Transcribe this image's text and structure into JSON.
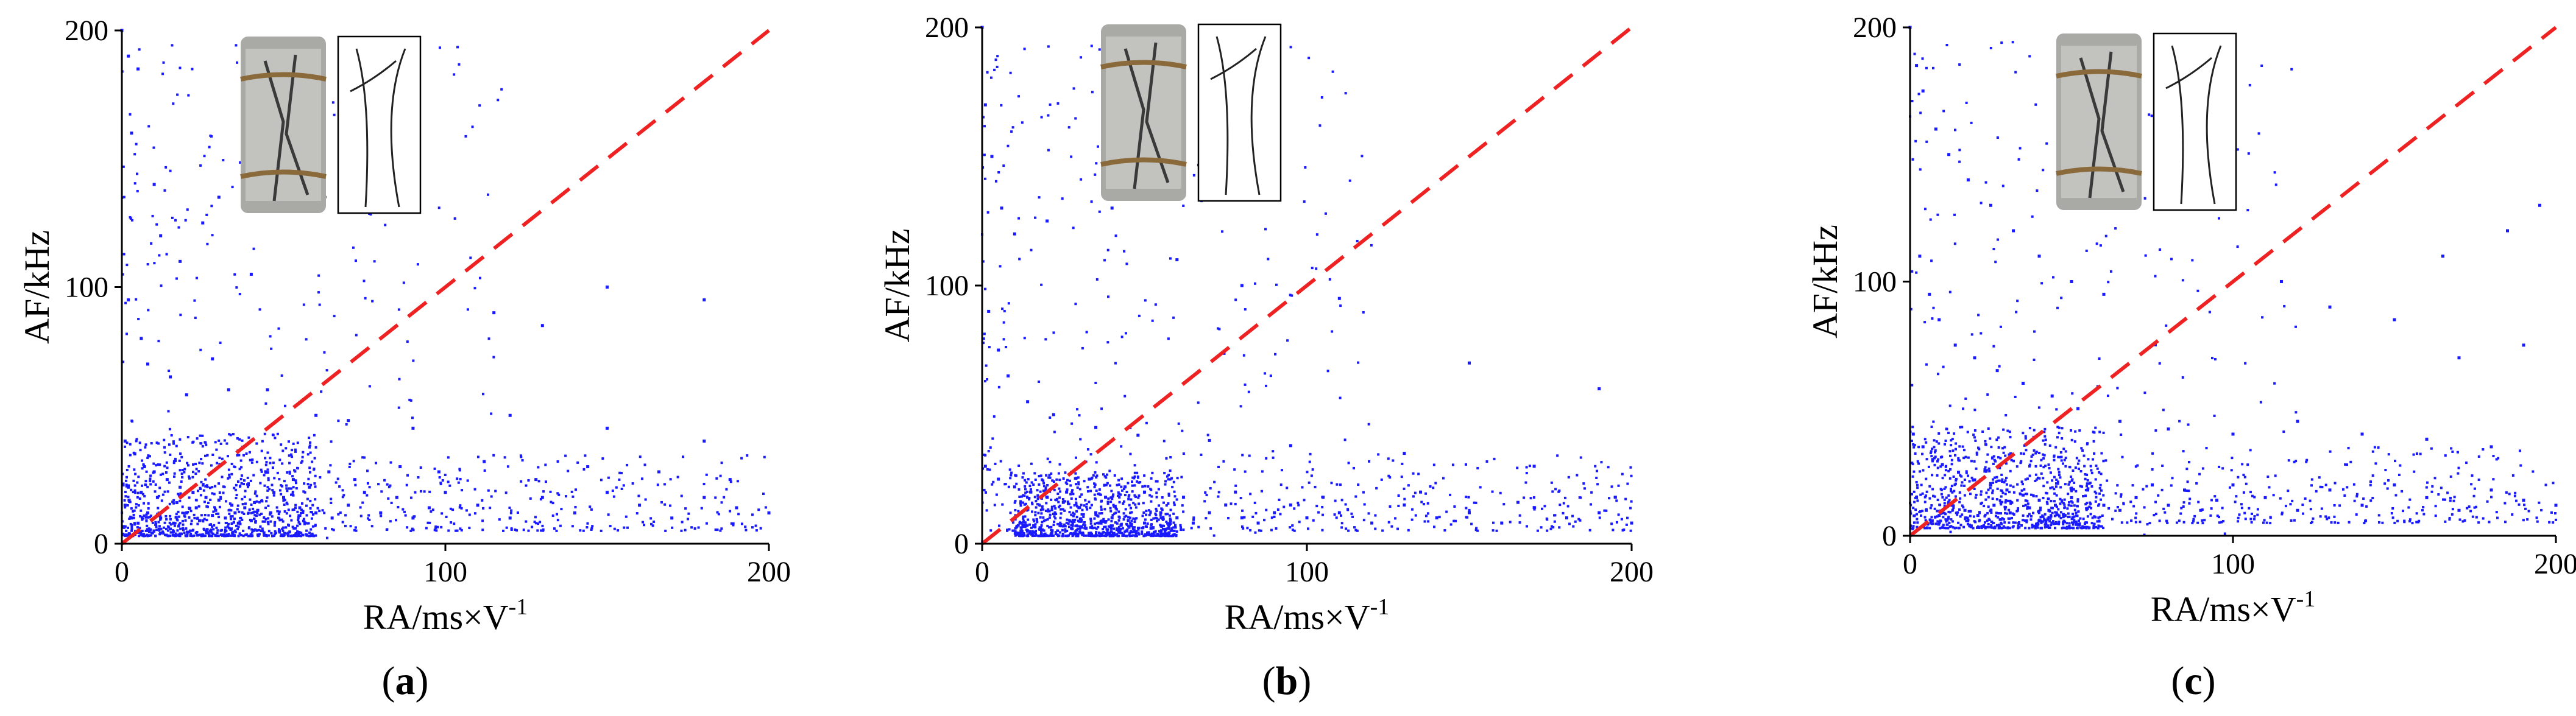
{
  "chart_data": [
    {
      "type": "scatter",
      "panel_label": "a",
      "title": "",
      "xlabel": "RA/ms×V",
      "xlabel_superscript": "-1",
      "ylabel": "AF/kHz",
      "xlim": [
        0,
        200
      ],
      "ylim": [
        0,
        200
      ],
      "xticks": [
        0,
        100,
        200
      ],
      "yticks": [
        0,
        100,
        200
      ],
      "grid": false,
      "legend": "none",
      "series": [
        {
          "marker_color": "#1a1aff",
          "density": "cloud dense at RA 0–60, AF 0–40; sparse band along AF 5–40 to RA 200; scattered points up to AF 200 near RA 0–50",
          "points": [
            [
              0,
              200
            ],
            [
              2,
              190
            ],
            [
              3,
              160
            ],
            [
              5,
              185
            ],
            [
              10,
              140
            ],
            [
              12,
              120
            ],
            [
              18,
              110
            ],
            [
              25,
              125
            ],
            [
              30,
              135
            ],
            [
              40,
              105
            ],
            [
              2,
              95
            ],
            [
              6,
              80
            ],
            [
              8,
              70
            ],
            [
              15,
              65
            ],
            [
              20,
              58
            ],
            [
              28,
              72
            ],
            [
              33,
              60
            ],
            [
              45,
              60
            ],
            [
              55,
              55
            ],
            [
              60,
              50
            ],
            [
              70,
              48
            ],
            [
              90,
              45
            ],
            [
              120,
              50
            ],
            [
              150,
              45
            ],
            [
              180,
              40
            ],
            [
              1,
              40
            ],
            [
              4,
              35
            ],
            [
              7,
              30
            ],
            [
              10,
              28
            ],
            [
              14,
              25
            ],
            [
              18,
              22
            ],
            [
              22,
              20
            ],
            [
              26,
              18
            ],
            [
              30,
              17
            ],
            [
              34,
              15
            ],
            [
              38,
              14
            ],
            [
              42,
              13
            ],
            [
              46,
              12
            ],
            [
              50,
              18
            ],
            [
              55,
              14
            ],
            [
              60,
              12
            ],
            [
              65,
              10
            ],
            [
              70,
              15
            ],
            [
              75,
              20
            ],
            [
              80,
              12
            ],
            [
              85,
              18
            ],
            [
              90,
              10
            ],
            [
              95,
              14
            ],
            [
              100,
              20
            ],
            [
              110,
              15
            ],
            [
              120,
              10
            ],
            [
              130,
              18
            ],
            [
              140,
              12
            ],
            [
              150,
              20
            ],
            [
              160,
              15
            ],
            [
              170,
              10
            ],
            [
              180,
              18
            ],
            [
              190,
              14
            ],
            [
              200,
              12
            ],
            [
              1,
              15
            ],
            [
              3,
              10
            ],
            [
              5,
              8
            ],
            [
              8,
              12
            ],
            [
              12,
              10
            ],
            [
              16,
              8
            ],
            [
              20,
              12
            ],
            [
              24,
              9
            ],
            [
              28,
              11
            ],
            [
              32,
              10
            ],
            [
              36,
              8
            ],
            [
              40,
              9
            ],
            [
              2,
              22
            ],
            [
              6,
              20
            ],
            [
              11,
              18
            ],
            [
              17,
              16
            ],
            [
              23,
              14
            ],
            [
              29,
              13
            ],
            [
              35,
              12
            ],
            [
              41,
              16
            ],
            [
              47,
              20
            ],
            [
              53,
              25
            ],
            [
              58,
              22
            ],
            [
              64,
              28
            ],
            [
              72,
              25
            ],
            [
              86,
              30
            ],
            [
              98,
              28
            ],
            [
              112,
              32
            ],
            [
              128,
              25
            ],
            [
              144,
              30
            ],
            [
              166,
              28
            ],
            [
              188,
              25
            ],
            [
              150,
              100
            ],
            [
              180,
              95
            ],
            [
              130,
              85
            ],
            [
              115,
              90
            ]
          ]
        }
      ],
      "reference_line": {
        "x": [
          0,
          200
        ],
        "y": [
          0,
          200
        ],
        "color": "#ee2222",
        "style": "dashed"
      },
      "inset": {
        "type": "photo and crack sketch",
        "description": "cylindrical rock specimen with cracks and its fracture sketch"
      }
    },
    {
      "type": "scatter",
      "panel_label": "b",
      "title": "",
      "xlabel": "RA/ms×V",
      "xlabel_superscript": "-1",
      "ylabel": "AF/kHz",
      "xlim": [
        0,
        200
      ],
      "ylim": [
        0,
        200
      ],
      "xticks": [
        0,
        100,
        200
      ],
      "yticks": [
        0,
        100,
        200
      ],
      "grid": false,
      "legend": "none",
      "series": [
        {
          "marker_color": "#1a1aff",
          "density": "dense cloud at RA 10–60, AF 0–25; sparse band along AF 5–25 to RA 200; scattered points up to AF 200",
          "points": [
            [
              0,
              200
            ],
            [
              1,
              170
            ],
            [
              3,
              150
            ],
            [
              6,
              130
            ],
            [
              10,
              120
            ],
            [
              20,
              125
            ],
            [
              40,
              130
            ],
            [
              60,
              110
            ],
            [
              80,
              100
            ],
            [
              110,
              95
            ],
            [
              150,
              70
            ],
            [
              190,
              60
            ],
            [
              2,
              90
            ],
            [
              5,
              75
            ],
            [
              8,
              65
            ],
            [
              14,
              55
            ],
            [
              22,
              50
            ],
            [
              35,
              45
            ],
            [
              48,
              42
            ],
            [
              70,
              40
            ],
            [
              95,
              38
            ],
            [
              130,
              35
            ],
            [
              170,
              30
            ],
            [
              1,
              30
            ],
            [
              5,
              25
            ],
            [
              10,
              22
            ],
            [
              15,
              20
            ],
            [
              20,
              18
            ],
            [
              25,
              16
            ],
            [
              30,
              14
            ],
            [
              35,
              12
            ],
            [
              40,
              10
            ],
            [
              45,
              9
            ],
            [
              50,
              8
            ],
            [
              55,
              12
            ],
            [
              60,
              10
            ],
            [
              65,
              8
            ],
            [
              70,
              12
            ],
            [
              75,
              15
            ],
            [
              80,
              10
            ],
            [
              85,
              8
            ],
            [
              90,
              12
            ],
            [
              95,
              15
            ],
            [
              100,
              10
            ],
            [
              110,
              12
            ],
            [
              120,
              8
            ],
            [
              130,
              15
            ],
            [
              140,
              10
            ],
            [
              150,
              12
            ],
            [
              160,
              8
            ],
            [
              170,
              14
            ],
            [
              180,
              10
            ],
            [
              190,
              12
            ],
            [
              200,
              8
            ],
            [
              12,
              8
            ],
            [
              18,
              6
            ],
            [
              24,
              7
            ],
            [
              28,
              9
            ],
            [
              32,
              6
            ],
            [
              36,
              8
            ],
            [
              42,
              5
            ],
            [
              46,
              7
            ],
            [
              52,
              6
            ],
            [
              58,
              9
            ],
            [
              26,
              20
            ],
            [
              38,
              18
            ],
            [
              44,
              22
            ],
            [
              33,
              25
            ],
            [
              50,
              20
            ],
            [
              62,
              18
            ],
            [
              78,
              20
            ],
            [
              105,
              18
            ],
            [
              135,
              20
            ],
            [
              165,
              16
            ],
            [
              195,
              18
            ]
          ]
        }
      ],
      "reference_line": {
        "x": [
          0,
          200
        ],
        "y": [
          0,
          200
        ],
        "color": "#ee2222",
        "style": "dashed"
      },
      "inset": {
        "type": "photo and crack sketch",
        "description": "cylindrical rock specimen with cracks and its fracture sketch"
      }
    },
    {
      "type": "scatter",
      "panel_label": "c",
      "title": "",
      "xlabel": "RA/ms×V",
      "xlabel_superscript": "-1",
      "ylabel": "AF/kHz",
      "xlim": [
        0,
        200
      ],
      "ylim": [
        0,
        200
      ],
      "xticks": [
        0,
        100,
        200
      ],
      "yticks": [
        0,
        100,
        200
      ],
      "grid": false,
      "legend": "none",
      "series": [
        {
          "marker_color": "#1a1aff",
          "density": "moderately dense at RA 0–60, AF 0–60; band AF 5–40 to RA 200; points spread up to AF 200 near RA 0–60",
          "points": [
            [
              0,
              200
            ],
            [
              2,
              185
            ],
            [
              4,
              175
            ],
            [
              8,
              160
            ],
            [
              12,
              150
            ],
            [
              18,
              140
            ],
            [
              25,
              130
            ],
            [
              32,
              120
            ],
            [
              40,
              110
            ],
            [
              50,
              100
            ],
            [
              60,
              95
            ],
            [
              3,
              110
            ],
            [
              6,
              95
            ],
            [
              9,
              85
            ],
            [
              14,
              75
            ],
            [
              20,
              70
            ],
            [
              27,
              65
            ],
            [
              35,
              60
            ],
            [
              44,
              55
            ],
            [
              52,
              50
            ],
            [
              65,
              45
            ],
            [
              80,
              42
            ],
            [
              100,
              40
            ],
            [
              120,
              45
            ],
            [
              140,
              40
            ],
            [
              160,
              38
            ],
            [
              180,
              35
            ],
            [
              1,
              40
            ],
            [
              4,
              35
            ],
            [
              7,
              30
            ],
            [
              10,
              28
            ],
            [
              15,
              25
            ],
            [
              20,
              22
            ],
            [
              25,
              20
            ],
            [
              30,
              18
            ],
            [
              35,
              16
            ],
            [
              40,
              14
            ],
            [
              45,
              12
            ],
            [
              50,
              15
            ],
            [
              55,
              18
            ],
            [
              60,
              12
            ],
            [
              65,
              10
            ],
            [
              70,
              15
            ],
            [
              75,
              20
            ],
            [
              80,
              12
            ],
            [
              85,
              18
            ],
            [
              90,
              10
            ],
            [
              95,
              14
            ],
            [
              100,
              20
            ],
            [
              110,
              15
            ],
            [
              120,
              10
            ],
            [
              130,
              18
            ],
            [
              140,
              12
            ],
            [
              150,
              20
            ],
            [
              160,
              15
            ],
            [
              170,
              10
            ],
            [
              180,
              18
            ],
            [
              190,
              14
            ],
            [
              200,
              12
            ],
            [
              2,
              15
            ],
            [
              5,
              10
            ],
            [
              9,
              8
            ],
            [
              13,
              12
            ],
            [
              17,
              10
            ],
            [
              21,
              8
            ],
            [
              26,
              12
            ],
            [
              31,
              9
            ],
            [
              37,
              11
            ],
            [
              43,
              10
            ],
            [
              48,
              8
            ],
            [
              150,
              85
            ],
            [
              170,
              70
            ],
            [
              190,
              75
            ],
            [
              130,
              90
            ],
            [
              115,
              100
            ],
            [
              165,
              110
            ],
            [
              185,
              120
            ],
            [
              195,
              130
            ]
          ]
        }
      ],
      "reference_line": {
        "x": [
          0,
          200
        ],
        "y": [
          0,
          200
        ],
        "color": "#ee2222",
        "style": "dashed"
      },
      "inset": {
        "type": "photo and crack sketch",
        "description": "cylindrical rock specimen with cracks and its fracture sketch"
      }
    }
  ],
  "captions": [
    "(a)",
    "(b)",
    "(c)"
  ]
}
